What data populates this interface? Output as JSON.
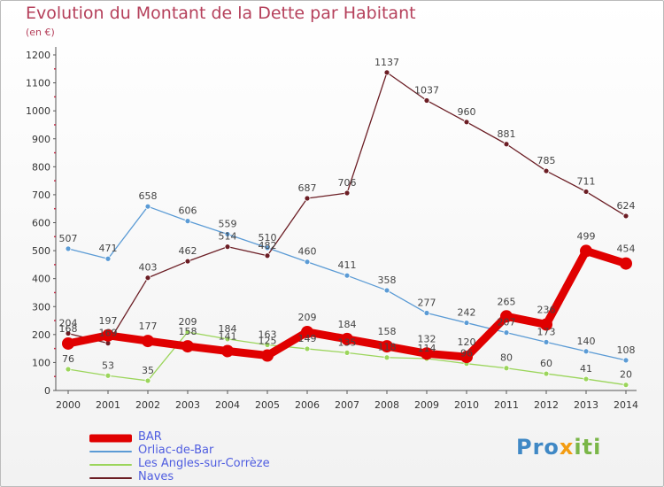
{
  "title": "Evolution du Montant de la Dette par Habitant",
  "unit_note": "(en €)",
  "logo": {
    "part1": "Pro",
    "part2": "x",
    "part3": "iti"
  },
  "chart_data": {
    "type": "line",
    "title": "Evolution du Montant de la Dette par Habitant",
    "ylabel": "(en €)",
    "ylim": [
      0,
      1200
    ],
    "yticks": [
      0,
      100,
      200,
      300,
      400,
      500,
      600,
      700,
      800,
      900,
      1000,
      1100,
      1200
    ],
    "x": [
      "2000",
      "2001",
      "2002",
      "2003",
      "2004",
      "2005",
      "2006",
      "2007",
      "2008",
      "2009",
      "2010",
      "2011",
      "2012",
      "2013",
      "2014"
    ],
    "grid": false,
    "legend_position": "bottom-left",
    "series": [
      {
        "name": "BAR",
        "color": "#e00000",
        "values": [
          168,
          197,
          177,
          158,
          141,
          125,
          209,
          184,
          158,
          132,
          120,
          265,
          236,
          499,
          454
        ]
      },
      {
        "name": "Orliac-de-Bar",
        "color": "#5b9bd5",
        "values": [
          507,
          471,
          658,
          606,
          559,
          510,
          460,
          411,
          358,
          277,
          242,
          207,
          173,
          140,
          108
        ]
      },
      {
        "name": "Les Angles-sur-Corrèze",
        "color": "#9bd55b",
        "values": [
          76,
          53,
          35,
          209,
          184,
          163,
          149,
          135,
          118,
          114,
          96,
          80,
          60,
          41,
          20
        ]
      },
      {
        "name": "Naves",
        "color": "#6b1d24",
        "values": [
          204,
          169,
          403,
          462,
          514,
          482,
          687,
          706,
          1137,
          1037,
          960,
          881,
          785,
          711,
          624
        ]
      }
    ]
  }
}
